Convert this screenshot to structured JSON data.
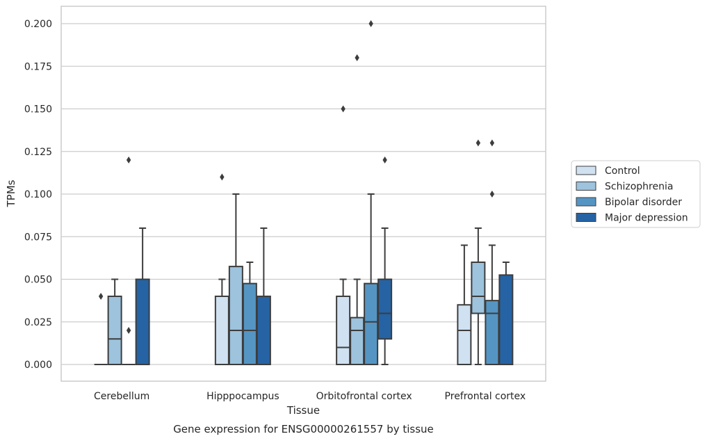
{
  "chart_data": {
    "type": "box",
    "title": "Gene expression for ENSG00000261557 by tissue",
    "xlabel": "Tissue",
    "ylabel": "TPMs",
    "ylim": [
      -0.01,
      0.21
    ],
    "yticks": [
      "0.000",
      "0.025",
      "0.050",
      "0.075",
      "0.100",
      "0.125",
      "0.150",
      "0.175",
      "0.200"
    ],
    "grid": "horizontal",
    "legend_position": "right",
    "categories": [
      "Cerebellum",
      "Hipppocampus",
      "Orbitofrontal cortex",
      "Prefrontal cortex"
    ],
    "series": [
      {
        "name": "Control",
        "color": "#d0e1f1",
        "boxes": [
          {
            "whisker_low": 0,
            "q1": 0,
            "median": 0,
            "q3": 0,
            "whisker_high": 0,
            "outliers": [
              0.04
            ]
          },
          {
            "whisker_low": 0,
            "q1": 0,
            "median": 0,
            "q3": 0.04,
            "whisker_high": 0.05,
            "outliers": [
              0.11
            ]
          },
          {
            "whisker_low": 0,
            "q1": 0,
            "median": 0.01,
            "q3": 0.04,
            "whisker_high": 0.05,
            "outliers": [
              0.15
            ]
          },
          {
            "whisker_low": 0,
            "q1": 0,
            "median": 0.02,
            "q3": 0.035,
            "whisker_high": 0.07,
            "outliers": []
          }
        ]
      },
      {
        "name": "Schizophrenia",
        "color": "#9dc3dd",
        "boxes": [
          {
            "whisker_low": 0,
            "q1": 0,
            "median": 0.015,
            "q3": 0.04,
            "whisker_high": 0.05,
            "outliers": []
          },
          {
            "whisker_low": 0,
            "q1": 0,
            "median": 0.02,
            "q3": 0.0575,
            "whisker_high": 0.1,
            "outliers": []
          },
          {
            "whisker_low": 0,
            "q1": 0,
            "median": 0.02,
            "q3": 0.0275,
            "whisker_high": 0.05,
            "outliers": [
              0.18
            ]
          },
          {
            "whisker_low": 0,
            "q1": 0.03,
            "median": 0.04,
            "q3": 0.06,
            "whisker_high": 0.08,
            "outliers": [
              0.13
            ]
          }
        ]
      },
      {
        "name": "Bipolar disorder",
        "color": "#5595c3",
        "boxes": [
          {
            "whisker_low": 0,
            "q1": 0,
            "median": 0,
            "q3": 0,
            "whisker_high": 0,
            "outliers": [
              0.02,
              0.12
            ]
          },
          {
            "whisker_low": 0,
            "q1": 0,
            "median": 0.02,
            "q3": 0.0475,
            "whisker_high": 0.06,
            "outliers": []
          },
          {
            "whisker_low": 0,
            "q1": 0,
            "median": 0.025,
            "q3": 0.0475,
            "whisker_high": 0.1,
            "outliers": [
              0.2
            ]
          },
          {
            "whisker_low": 0,
            "q1": 0,
            "median": 0.03,
            "q3": 0.0375,
            "whisker_high": 0.07,
            "outliers": [
              0.1,
              0.13
            ]
          }
        ]
      },
      {
        "name": "Major depression",
        "color": "#2563a4",
        "boxes": [
          {
            "whisker_low": 0,
            "q1": 0,
            "median": 0,
            "q3": 0.05,
            "whisker_high": 0.08,
            "outliers": []
          },
          {
            "whisker_low": 0,
            "q1": 0,
            "median": 0,
            "q3": 0.04,
            "whisker_high": 0.08,
            "outliers": []
          },
          {
            "whisker_low": 0,
            "q1": 0.015,
            "median": 0.03,
            "q3": 0.05,
            "whisker_high": 0.08,
            "outliers": [
              0.12
            ]
          },
          {
            "whisker_low": 0,
            "q1": 0,
            "median": 0,
            "q3": 0.0525,
            "whisker_high": 0.06,
            "outliers": []
          }
        ]
      }
    ]
  }
}
